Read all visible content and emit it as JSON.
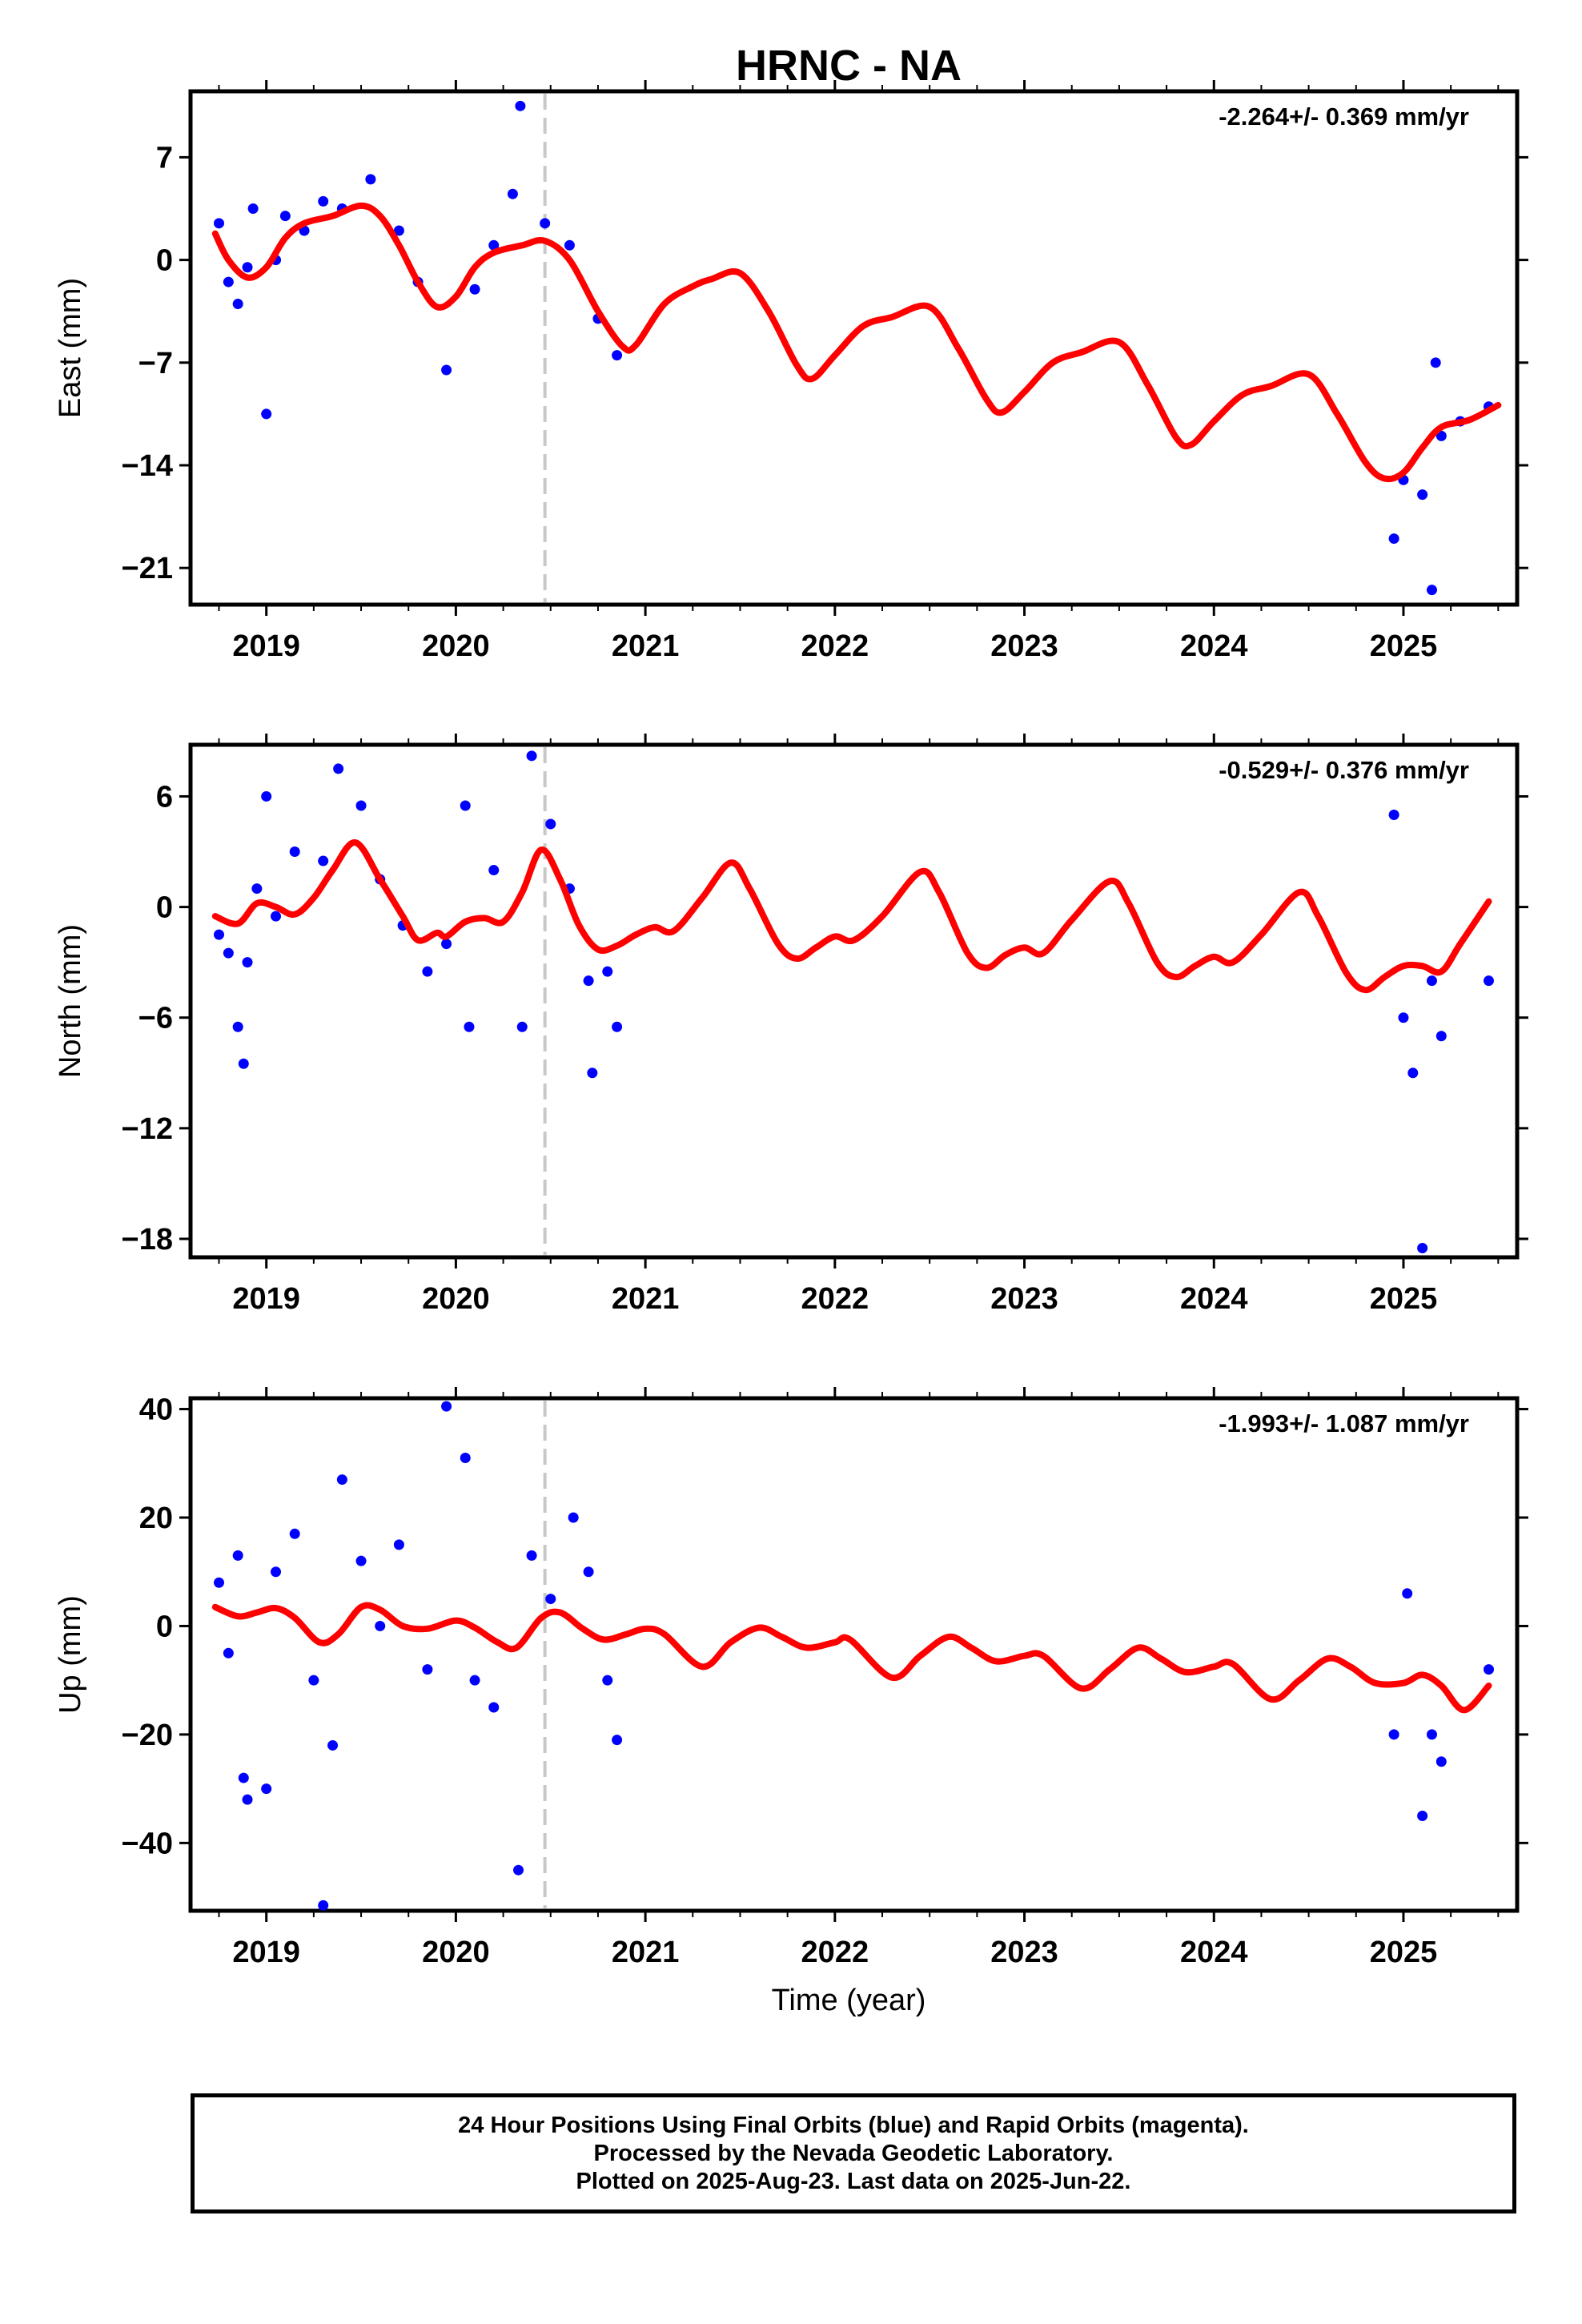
{
  "title": "HRNC - NA",
  "xlabel": "Time (year)",
  "x_ticks": [
    2019,
    2020,
    2021,
    2022,
    2023,
    2024,
    2025
  ],
  "footer": {
    "line1": "24 Hour Positions Using Final Orbits (blue) and Rapid Orbits (magenta).",
    "line2": "Processed by the Nevada Geodetic Laboratory.",
    "line3": "Plotted on 2025-Aug-23. Last data on 2025-Jun-22."
  },
  "chart_data": [
    {
      "type": "scatter",
      "ylabel": "East (mm)",
      "rate": "-2.264+/- 0.369 mm/yr",
      "xlim": [
        2018.6,
        2025.6
      ],
      "ylim": [
        -23.5,
        11.5
      ],
      "yticks": [
        -21,
        -14,
        -7,
        0,
        7
      ],
      "equipment_change": 2020.47,
      "colors": {
        "points": "#0000ff",
        "model": "#ff0000",
        "change": "#c8c8c8"
      },
      "model_curve": [
        [
          2018.73,
          1.8
        ],
        [
          2018.8,
          0
        ],
        [
          2018.9,
          -1.2
        ],
        [
          2019.0,
          -0.5
        ],
        [
          2019.1,
          1.5
        ],
        [
          2019.2,
          2.5
        ],
        [
          2019.35,
          3.0
        ],
        [
          2019.5,
          3.7
        ],
        [
          2019.6,
          3.0
        ],
        [
          2019.7,
          1
        ],
        [
          2019.8,
          -1.5
        ],
        [
          2019.9,
          -3.2
        ],
        [
          2020.0,
          -2.5
        ],
        [
          2020.1,
          -0.5
        ],
        [
          2020.2,
          0.5
        ],
        [
          2020.35,
          1.0
        ],
        [
          2020.47,
          1.3
        ],
        [
          2020.6,
          0
        ],
        [
          2020.75,
          -3.5
        ],
        [
          2020.88,
          -5.9
        ],
        [
          2020.95,
          -5.8
        ],
        [
          2021.1,
          -3
        ],
        [
          2021.25,
          -1.8
        ],
        [
          2021.35,
          -1.3
        ],
        [
          2021.5,
          -0.9
        ],
        [
          2021.65,
          -3.5
        ],
        [
          2021.8,
          -7.2
        ],
        [
          2021.88,
          -8.1
        ],
        [
          2022.0,
          -6.5
        ],
        [
          2022.15,
          -4.5
        ],
        [
          2022.3,
          -3.9
        ],
        [
          2022.5,
          -3.2
        ],
        [
          2022.65,
          -6
        ],
        [
          2022.8,
          -9.5
        ],
        [
          2022.88,
          -10.4
        ],
        [
          2023.0,
          -9
        ],
        [
          2023.15,
          -7
        ],
        [
          2023.3,
          -6.3
        ],
        [
          2023.5,
          -5.6
        ],
        [
          2023.65,
          -8.5
        ],
        [
          2023.8,
          -12.1
        ],
        [
          2023.88,
          -12.6
        ],
        [
          2024.0,
          -11
        ],
        [
          2024.15,
          -9.2
        ],
        [
          2024.3,
          -8.6
        ],
        [
          2024.5,
          -7.8
        ],
        [
          2024.65,
          -10.5
        ],
        [
          2024.8,
          -13.8
        ],
        [
          2024.9,
          -14.9
        ],
        [
          2025.0,
          -14.5
        ],
        [
          2025.1,
          -12.8
        ],
        [
          2025.2,
          -11.4
        ],
        [
          2025.35,
          -10.9
        ],
        [
          2025.5,
          -9.9
        ]
      ],
      "points": [
        [
          2018.75,
          2.5
        ],
        [
          2018.8,
          -1.5
        ],
        [
          2018.85,
          -3
        ],
        [
          2018.9,
          -0.5
        ],
        [
          2018.93,
          3.5
        ],
        [
          2019.0,
          -10.5
        ],
        [
          2019.05,
          0
        ],
        [
          2019.1,
          3
        ],
        [
          2019.2,
          2
        ],
        [
          2019.3,
          4
        ],
        [
          2019.4,
          3.5
        ],
        [
          2019.55,
          5.5
        ],
        [
          2019.7,
          2
        ],
        [
          2019.8,
          -1.5
        ],
        [
          2019.95,
          -7.5
        ],
        [
          2020.1,
          -2
        ],
        [
          2020.2,
          1
        ],
        [
          2020.3,
          4.5
        ],
        [
          2020.34,
          10.5
        ],
        [
          2020.47,
          2.5
        ],
        [
          2020.6,
          1
        ],
        [
          2020.75,
          -4
        ],
        [
          2020.85,
          -6.5
        ],
        [
          2024.95,
          -19
        ],
        [
          2025.0,
          -15
        ],
        [
          2025.1,
          -16
        ],
        [
          2025.15,
          -22.5
        ],
        [
          2025.17,
          -7
        ],
        [
          2025.2,
          -12
        ],
        [
          2025.3,
          -11
        ],
        [
          2025.45,
          -10
        ]
      ]
    },
    {
      "type": "scatter",
      "ylabel": "North (mm)",
      "rate": "-0.529+/- 0.376 mm/yr",
      "xlim": [
        2018.6,
        2025.6
      ],
      "ylim": [
        -19.0,
        8.8
      ],
      "yticks": [
        -18,
        -12,
        -6,
        0,
        6
      ],
      "equipment_change": 2020.47,
      "colors": {
        "points": "#0000ff",
        "model": "#ff0000",
        "change": "#c8c8c8"
      },
      "model_curve": [
        [
          2018.73,
          -0.5
        ],
        [
          2018.85,
          -0.9
        ],
        [
          2018.95,
          0.2
        ],
        [
          2019.05,
          0
        ],
        [
          2019.15,
          -0.4
        ],
        [
          2019.25,
          0.5
        ],
        [
          2019.35,
          2.0
        ],
        [
          2019.47,
          3.5
        ],
        [
          2019.6,
          1.5
        ],
        [
          2019.72,
          -0.5
        ],
        [
          2019.8,
          -1.8
        ],
        [
          2019.9,
          -1.4
        ],
        [
          2019.95,
          -1.6
        ],
        [
          2020.05,
          -0.8
        ],
        [
          2020.15,
          -0.6
        ],
        [
          2020.25,
          -0.8
        ],
        [
          2020.35,
          0.8
        ],
        [
          2020.45,
          3.1
        ],
        [
          2020.55,
          1.5
        ],
        [
          2020.65,
          -1.0
        ],
        [
          2020.75,
          -2.3
        ],
        [
          2020.85,
          -2.1
        ],
        [
          2020.95,
          -1.5
        ],
        [
          2021.05,
          -1.1
        ],
        [
          2021.15,
          -1.3
        ],
        [
          2021.3,
          0.5
        ],
        [
          2021.45,
          2.4
        ],
        [
          2021.55,
          1.0
        ],
        [
          2021.7,
          -2.0
        ],
        [
          2021.8,
          -2.8
        ],
        [
          2021.9,
          -2.2
        ],
        [
          2022.0,
          -1.6
        ],
        [
          2022.1,
          -1.8
        ],
        [
          2022.25,
          -0.5
        ],
        [
          2022.45,
          1.9
        ],
        [
          2022.55,
          0.8
        ],
        [
          2022.7,
          -2.5
        ],
        [
          2022.8,
          -3.3
        ],
        [
          2022.9,
          -2.6
        ],
        [
          2023.0,
          -2.2
        ],
        [
          2023.1,
          -2.5
        ],
        [
          2023.25,
          -0.7
        ],
        [
          2023.45,
          1.4
        ],
        [
          2023.55,
          0.2
        ],
        [
          2023.7,
          -3
        ],
        [
          2023.8,
          -3.8
        ],
        [
          2023.9,
          -3.2
        ],
        [
          2024.0,
          -2.7
        ],
        [
          2024.1,
          -3.0
        ],
        [
          2024.25,
          -1.5
        ],
        [
          2024.45,
          0.8
        ],
        [
          2024.55,
          -0.5
        ],
        [
          2024.7,
          -3.6
        ],
        [
          2024.8,
          -4.5
        ],
        [
          2024.9,
          -3.8
        ],
        [
          2025.0,
          -3.2
        ],
        [
          2025.1,
          -3.2
        ],
        [
          2025.2,
          -3.5
        ],
        [
          2025.3,
          -2.0
        ],
        [
          2025.45,
          0.3
        ]
      ],
      "points": [
        [
          2018.75,
          -1.5
        ],
        [
          2018.8,
          -2.5
        ],
        [
          2018.85,
          -6.5
        ],
        [
          2018.88,
          -8.5
        ],
        [
          2018.9,
          -3
        ],
        [
          2018.95,
          1
        ],
        [
          2019.0,
          6
        ],
        [
          2019.05,
          -0.5
        ],
        [
          2019.15,
          3
        ],
        [
          2019.3,
          2.5
        ],
        [
          2019.38,
          7.5
        ],
        [
          2019.5,
          5.5
        ],
        [
          2019.6,
          1.5
        ],
        [
          2019.72,
          -1
        ],
        [
          2019.85,
          -3.5
        ],
        [
          2019.95,
          -2
        ],
        [
          2020.05,
          5.5
        ],
        [
          2020.07,
          -6.5
        ],
        [
          2020.2,
          2
        ],
        [
          2020.35,
          -6.5
        ],
        [
          2020.4,
          8.2
        ],
        [
          2020.5,
          4.5
        ],
        [
          2020.6,
          1
        ],
        [
          2020.7,
          -4
        ],
        [
          2020.72,
          -9
        ],
        [
          2020.8,
          -3.5
        ],
        [
          2020.85,
          -6.5
        ],
        [
          2024.95,
          5
        ],
        [
          2025.0,
          -6
        ],
        [
          2025.05,
          -9
        ],
        [
          2025.1,
          -18.5
        ],
        [
          2025.15,
          -4
        ],
        [
          2025.2,
          -7
        ],
        [
          2025.45,
          -4
        ]
      ]
    },
    {
      "type": "scatter",
      "ylabel": "Up (mm)",
      "rate": "-1.993+/- 1.087 mm/yr",
      "xlim": [
        2018.6,
        2025.6
      ],
      "ylim": [
        -52.5,
        42
      ],
      "yticks": [
        -40,
        -20,
        0,
        20,
        40
      ],
      "equipment_change": 2020.47,
      "colors": {
        "points": "#0000ff",
        "model": "#ff0000",
        "change": "#c8c8c8"
      },
      "model_curve": [
        [
          2018.73,
          3.5
        ],
        [
          2018.85,
          1.8
        ],
        [
          2018.95,
          2.5
        ],
        [
          2019.05,
          3.3
        ],
        [
          2019.15,
          1.5
        ],
        [
          2019.28,
          -3.0
        ],
        [
          2019.38,
          -1.5
        ],
        [
          2019.5,
          3.5
        ],
        [
          2019.6,
          3.0
        ],
        [
          2019.72,
          0
        ],
        [
          2019.85,
          -0.5
        ],
        [
          2020.0,
          1.0
        ],
        [
          2020.1,
          -0.3
        ],
        [
          2020.22,
          -3.0
        ],
        [
          2020.32,
          -4.0
        ],
        [
          2020.45,
          1.5
        ],
        [
          2020.55,
          2.5
        ],
        [
          2020.67,
          -0.5
        ],
        [
          2020.78,
          -2.5
        ],
        [
          2020.9,
          -1.5
        ],
        [
          2021.0,
          -0.5
        ],
        [
          2021.1,
          -1.5
        ],
        [
          2021.3,
          -7.5
        ],
        [
          2021.45,
          -3
        ],
        [
          2021.6,
          -0.3
        ],
        [
          2021.72,
          -2
        ],
        [
          2021.85,
          -4
        ],
        [
          2022.0,
          -3
        ],
        [
          2022.08,
          -2.5
        ],
        [
          2022.3,
          -9.5
        ],
        [
          2022.45,
          -5.5
        ],
        [
          2022.6,
          -2
        ],
        [
          2022.72,
          -4
        ],
        [
          2022.85,
          -6.5
        ],
        [
          2023.0,
          -5.5
        ],
        [
          2023.1,
          -5.5
        ],
        [
          2023.3,
          -11.5
        ],
        [
          2023.45,
          -8
        ],
        [
          2023.6,
          -4
        ],
        [
          2023.72,
          -6
        ],
        [
          2023.85,
          -8.5
        ],
        [
          2024.0,
          -7.5
        ],
        [
          2024.1,
          -7
        ],
        [
          2024.3,
          -13.5
        ],
        [
          2024.45,
          -10
        ],
        [
          2024.6,
          -6
        ],
        [
          2024.72,
          -7.5
        ],
        [
          2024.85,
          -10.5
        ],
        [
          2025.0,
          -10.5
        ],
        [
          2025.1,
          -9
        ],
        [
          2025.2,
          -11
        ],
        [
          2025.32,
          -15.5
        ],
        [
          2025.45,
          -11
        ]
      ],
      "points": [
        [
          2018.75,
          8
        ],
        [
          2018.8,
          -5
        ],
        [
          2018.85,
          13
        ],
        [
          2018.88,
          -28
        ],
        [
          2018.9,
          -32
        ],
        [
          2019.0,
          -30
        ],
        [
          2019.05,
          10
        ],
        [
          2019.15,
          17
        ],
        [
          2019.25,
          -10
        ],
        [
          2019.3,
          -51.5
        ],
        [
          2019.35,
          -22
        ],
        [
          2019.4,
          27
        ],
        [
          2019.5,
          12
        ],
        [
          2019.6,
          0
        ],
        [
          2019.7,
          15
        ],
        [
          2019.85,
          -8
        ],
        [
          2019.95,
          40.5
        ],
        [
          2020.05,
          31
        ],
        [
          2020.1,
          -10
        ],
        [
          2020.2,
          -15
        ],
        [
          2020.33,
          -45
        ],
        [
          2020.4,
          13
        ],
        [
          2020.5,
          5
        ],
        [
          2020.62,
          20
        ],
        [
          2020.7,
          10
        ],
        [
          2020.8,
          -10
        ],
        [
          2020.85,
          -21
        ],
        [
          2024.95,
          -20
        ],
        [
          2025.02,
          6
        ],
        [
          2025.1,
          -35
        ],
        [
          2025.15,
          -20
        ],
        [
          2025.2,
          -25
        ],
        [
          2025.45,
          -8
        ]
      ]
    }
  ]
}
